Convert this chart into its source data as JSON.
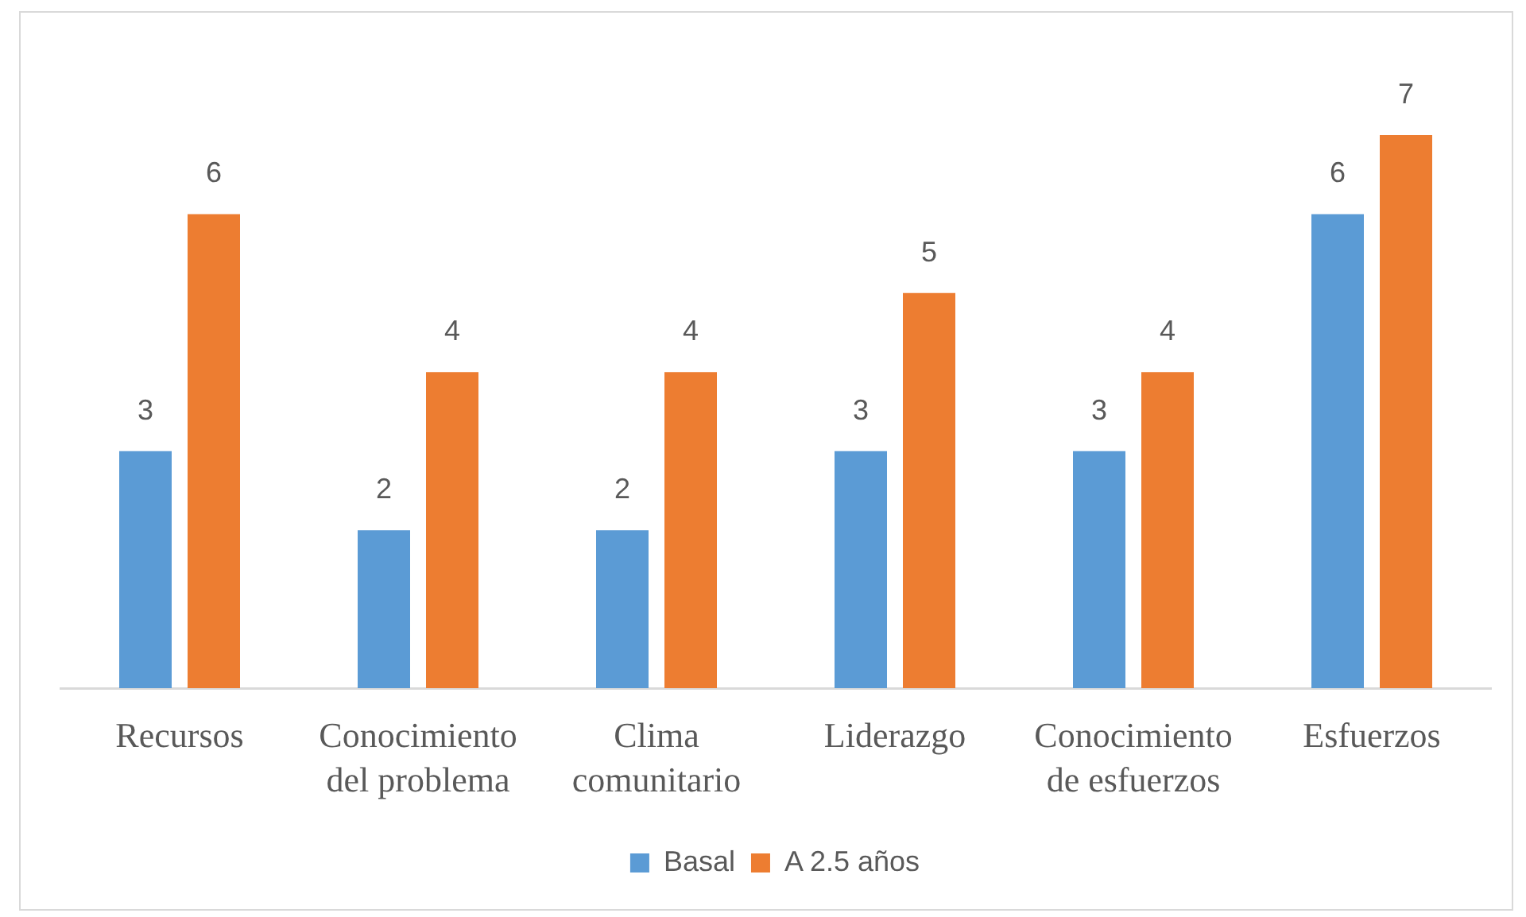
{
  "chart_data": {
    "type": "bar",
    "categories": [
      "Recursos",
      "Conocimiento del problema",
      "Clima comunitario",
      "Liderazgo",
      "Conocimiento de esfuerzos",
      "Esfuerzos"
    ],
    "series": [
      {
        "name": "Basal",
        "color": "#5b9bd5",
        "values": [
          3,
          2,
          2,
          3,
          3,
          6
        ]
      },
      {
        "name": "A 2.5 años",
        "color": "#ed7d31",
        "values": [
          6,
          4,
          4,
          5,
          4,
          7
        ]
      }
    ],
    "data_labels": true,
    "legend": "bottom",
    "tick_labels": "x"
  }
}
